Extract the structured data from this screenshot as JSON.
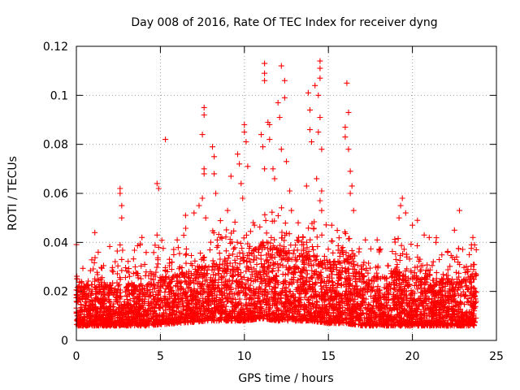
{
  "chart_data": {
    "type": "scatter",
    "title": "Day 008 of 2016, Rate Of TEC Index for receiver dyng",
    "xlabel": "GPS time / hours",
    "ylabel": "ROTI / TECUs",
    "xlim": [
      0,
      25
    ],
    "ylim": [
      0,
      0.12
    ],
    "xticks": [
      0,
      5,
      10,
      15,
      20,
      25
    ],
    "xtick_labels": [
      "0",
      "5",
      "10",
      "15",
      "20",
      "25"
    ],
    "yticks": [
      0,
      0.02,
      0.04,
      0.06,
      0.08,
      0.1,
      0.12
    ],
    "ytick_labels": [
      "0",
      "0.02",
      "0.04",
      "0.06",
      "0.08",
      "0.1",
      "0.12"
    ],
    "grid": true,
    "marker": "+",
    "marker_color": "#ff0000",
    "data_coverage_hours": [
      0,
      23.8
    ],
    "series": [
      {
        "name": "ROTI",
        "points": [
          [
            0.3,
            0.024
          ],
          [
            1.1,
            0.044
          ],
          [
            1.3,
            0.036
          ],
          [
            2.6,
            0.062
          ],
          [
            2.6,
            0.06
          ],
          [
            2.7,
            0.055
          ],
          [
            2.7,
            0.05
          ],
          [
            2.6,
            0.039
          ],
          [
            2.7,
            0.033
          ],
          [
            3.5,
            0.03
          ],
          [
            3.9,
            0.042
          ],
          [
            4.8,
            0.064
          ],
          [
            4.9,
            0.062
          ],
          [
            4.8,
            0.043
          ],
          [
            4.9,
            0.038
          ],
          [
            5.3,
            0.082
          ],
          [
            5.8,
            0.035
          ],
          [
            6.0,
            0.041
          ],
          [
            6.5,
            0.051
          ],
          [
            7.0,
            0.052
          ],
          [
            7.3,
            0.055
          ],
          [
            7.6,
            0.095
          ],
          [
            7.6,
            0.092
          ],
          [
            7.5,
            0.084
          ],
          [
            7.6,
            0.07
          ],
          [
            7.6,
            0.068
          ],
          [
            7.5,
            0.058
          ],
          [
            7.7,
            0.05
          ],
          [
            8.1,
            0.079
          ],
          [
            8.2,
            0.075
          ],
          [
            8.2,
            0.068
          ],
          [
            8.3,
            0.06
          ],
          [
            8.6,
            0.042
          ],
          [
            9.0,
            0.053
          ],
          [
            9.2,
            0.067
          ],
          [
            9.6,
            0.076
          ],
          [
            9.7,
            0.072
          ],
          [
            9.8,
            0.064
          ],
          [
            9.9,
            0.058
          ],
          [
            10.0,
            0.088
          ],
          [
            10.0,
            0.085
          ],
          [
            10.1,
            0.081
          ],
          [
            10.2,
            0.071
          ],
          [
            10.6,
            0.047
          ],
          [
            11.0,
            0.084
          ],
          [
            11.1,
            0.079
          ],
          [
            11.2,
            0.07
          ],
          [
            11.2,
            0.113
          ],
          [
            11.2,
            0.109
          ],
          [
            11.2,
            0.106
          ],
          [
            11.4,
            0.089
          ],
          [
            11.5,
            0.088
          ],
          [
            11.5,
            0.082
          ],
          [
            11.7,
            0.07
          ],
          [
            11.8,
            0.066
          ],
          [
            12.0,
            0.097
          ],
          [
            12.1,
            0.091
          ],
          [
            12.2,
            0.078
          ],
          [
            12.2,
            0.112
          ],
          [
            12.4,
            0.106
          ],
          [
            12.4,
            0.099
          ],
          [
            12.5,
            0.073
          ],
          [
            12.7,
            0.061
          ],
          [
            12.8,
            0.053
          ],
          [
            13.2,
            0.048
          ],
          [
            13.7,
            0.063
          ],
          [
            13.8,
            0.101
          ],
          [
            13.9,
            0.094
          ],
          [
            13.9,
            0.086
          ],
          [
            14.0,
            0.081
          ],
          [
            14.2,
            0.104
          ],
          [
            14.3,
            0.066
          ],
          [
            14.5,
            0.114
          ],
          [
            14.5,
            0.111
          ],
          [
            14.5,
            0.107
          ],
          [
            14.4,
            0.1
          ],
          [
            14.5,
            0.091
          ],
          [
            14.4,
            0.085
          ],
          [
            14.6,
            0.078
          ],
          [
            14.6,
            0.061
          ],
          [
            14.5,
            0.057
          ],
          [
            14.6,
            0.053
          ],
          [
            15.2,
            0.047
          ],
          [
            16.1,
            0.105
          ],
          [
            16.2,
            0.093
          ],
          [
            16.0,
            0.087
          ],
          [
            16.0,
            0.083
          ],
          [
            16.2,
            0.078
          ],
          [
            16.3,
            0.069
          ],
          [
            16.4,
            0.063
          ],
          [
            16.3,
            0.06
          ],
          [
            16.5,
            0.053
          ],
          [
            17.2,
            0.041
          ],
          [
            17.9,
            0.041
          ],
          [
            19.4,
            0.058
          ],
          [
            19.3,
            0.055
          ],
          [
            19.6,
            0.052
          ],
          [
            19.2,
            0.05
          ],
          [
            20.3,
            0.049
          ],
          [
            20.0,
            0.047
          ],
          [
            20.7,
            0.043
          ],
          [
            21.0,
            0.042
          ],
          [
            21.4,
            0.04
          ],
          [
            22.8,
            0.053
          ],
          [
            22.5,
            0.045
          ],
          [
            23.6,
            0.042
          ],
          [
            23.7,
            0.039
          ],
          [
            23.8,
            0.037
          ]
        ],
        "baseline_profile_hours": [
          0,
          2,
          4,
          6,
          8,
          10,
          11,
          12,
          13,
          14,
          15,
          16,
          17,
          18,
          19,
          20,
          21,
          22,
          23,
          23.8
        ],
        "baseline_profile_typical_max": [
          0.022,
          0.022,
          0.022,
          0.026,
          0.03,
          0.033,
          0.038,
          0.036,
          0.034,
          0.034,
          0.03,
          0.032,
          0.026,
          0.025,
          0.028,
          0.025,
          0.024,
          0.023,
          0.024,
          0.026
        ],
        "baseline_profile_typical_min": [
          0.006,
          0.006,
          0.006,
          0.007,
          0.008,
          0.008,
          0.009,
          0.008,
          0.008,
          0.008,
          0.007,
          0.007,
          0.006,
          0.006,
          0.006,
          0.006,
          0.006,
          0.006,
          0.006,
          0.006
        ]
      }
    ]
  }
}
